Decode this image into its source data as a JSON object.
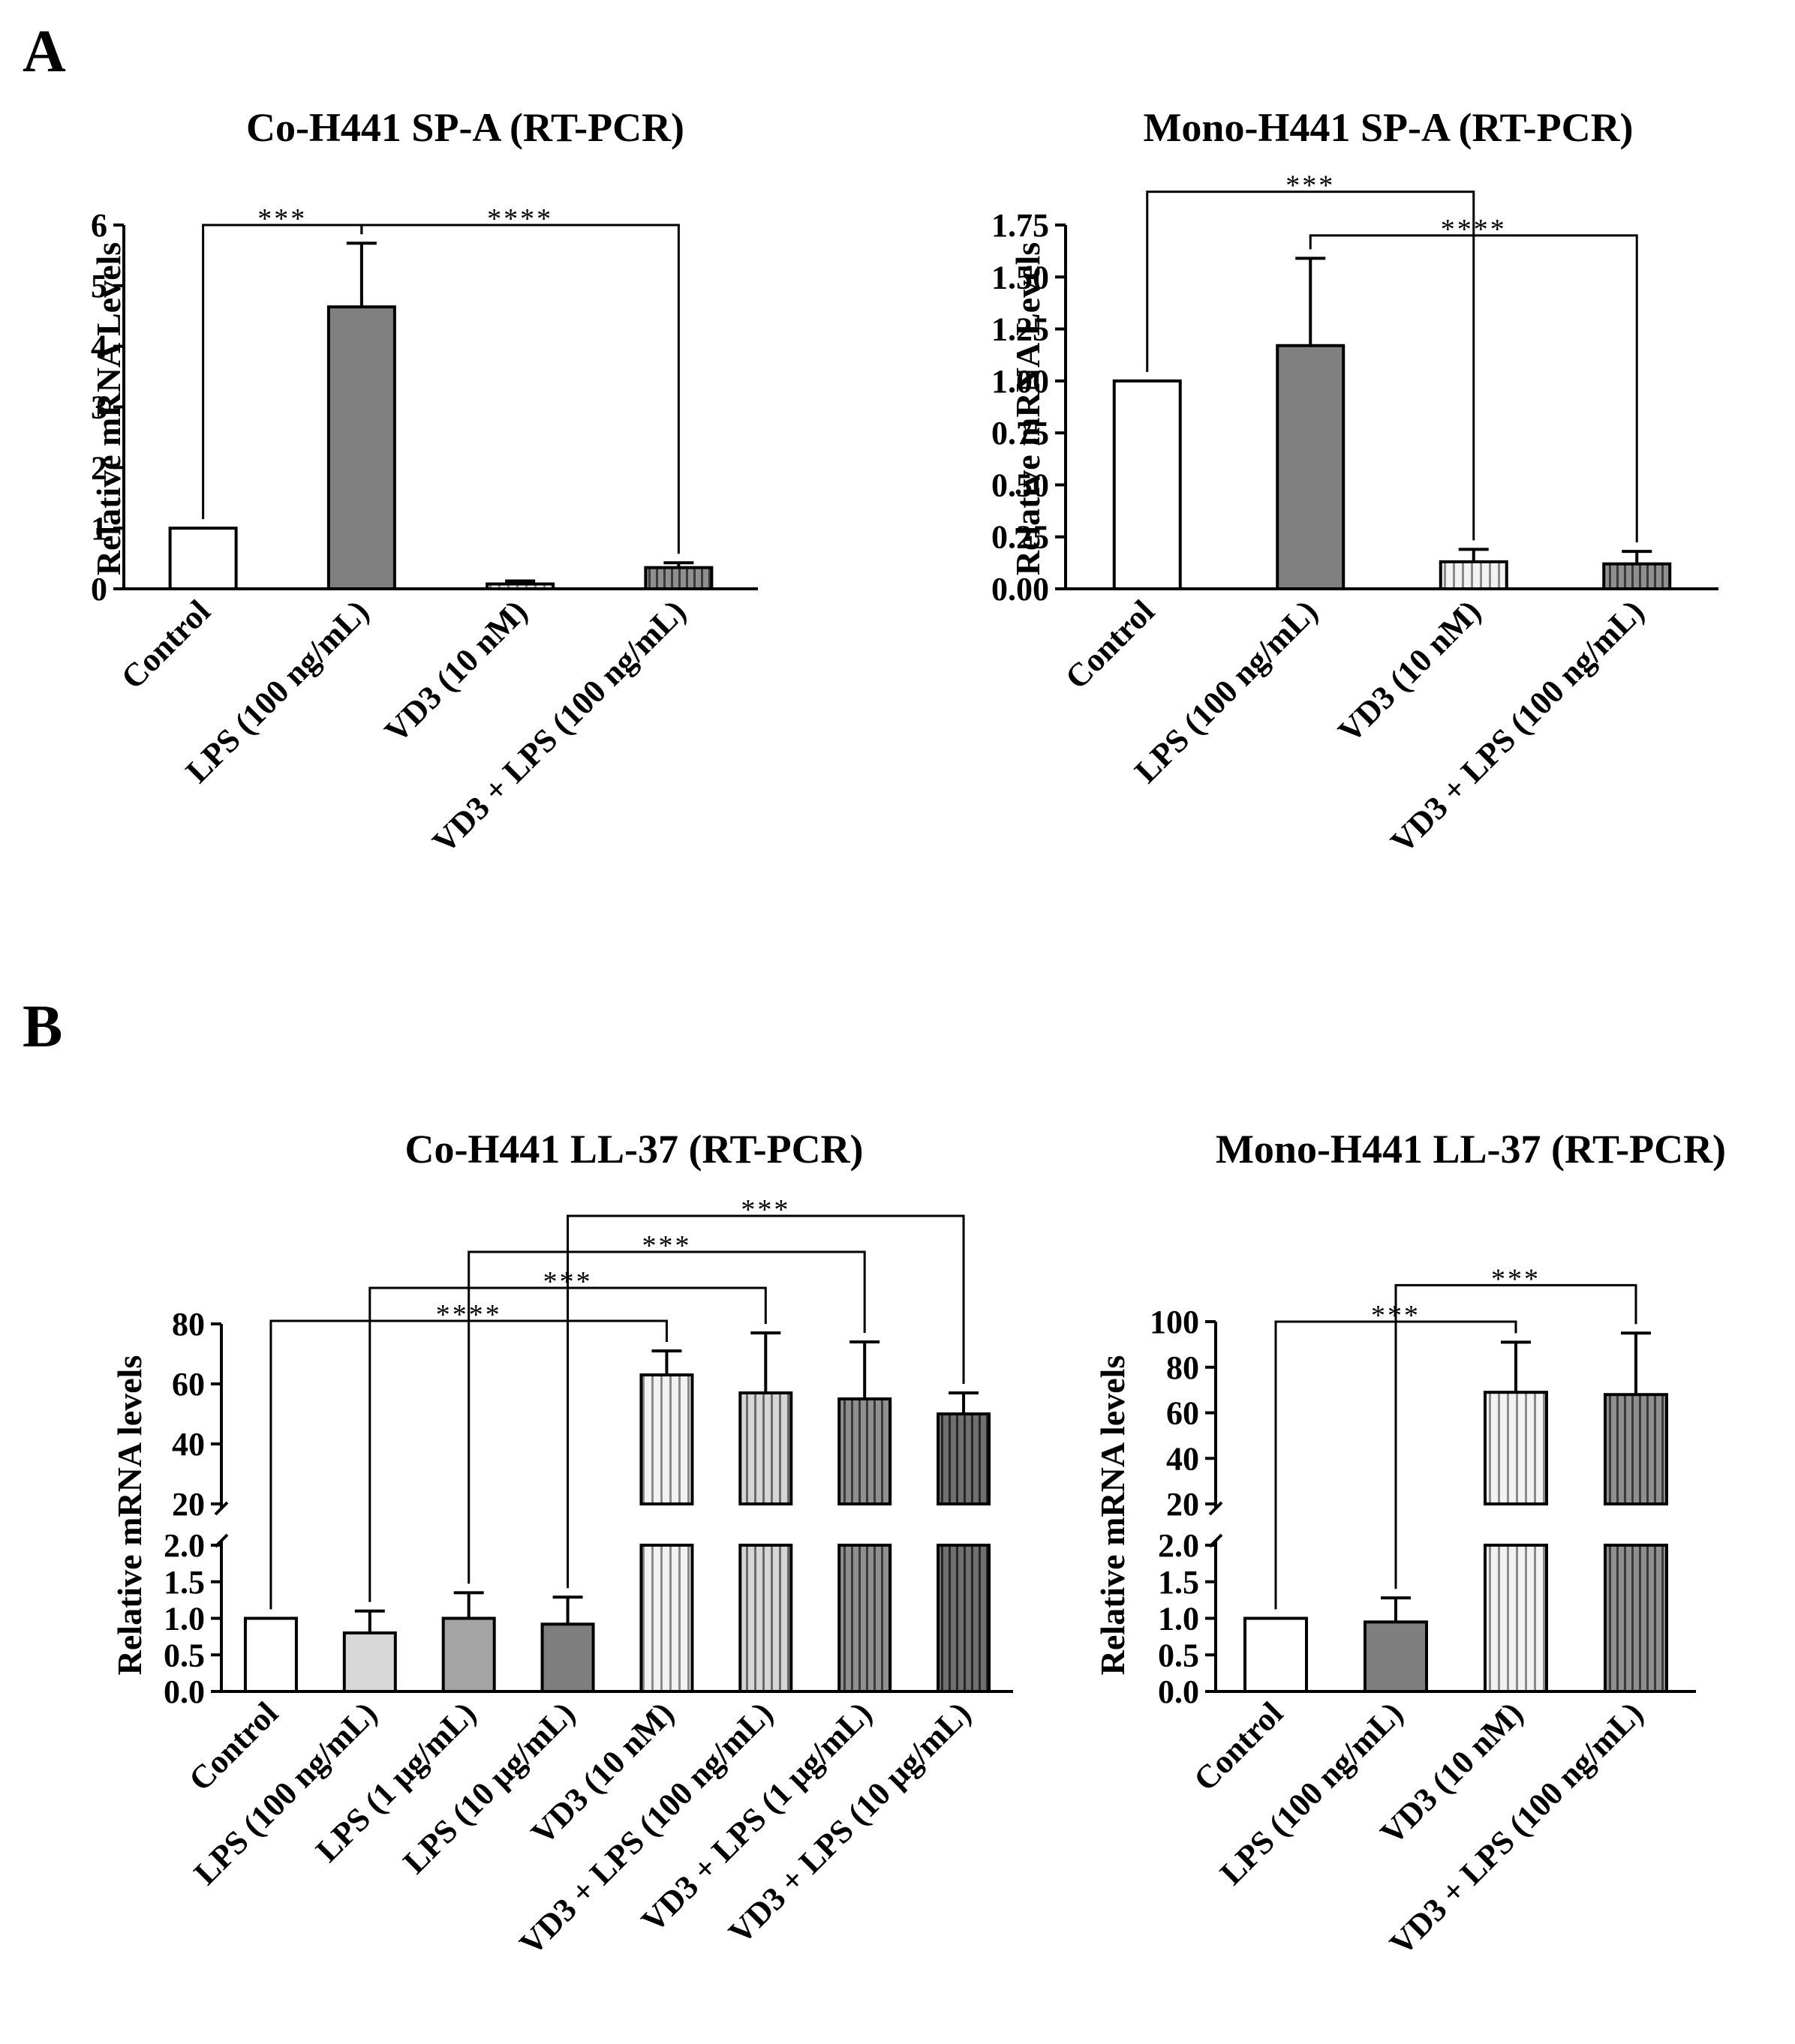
{
  "panels": [
    {
      "letter": "A"
    },
    {
      "letter": "B"
    }
  ],
  "chart_data": [
    {
      "id": "co-h441-spa",
      "panel": "A",
      "type": "bar",
      "title": "Co-H441 SP-A (RT-PCR)",
      "xlabel": "",
      "ylabel": "Relative mRNA Levels",
      "ylim": [
        0,
        6
      ],
      "yticks": [
        "0",
        "1",
        "2",
        "3",
        "4",
        "5",
        "6"
      ],
      "categories": [
        "Control",
        "LPS (100 ng/mL)",
        "VD3 (10 nM)",
        "VD3 + LPS (100 ng/mL)"
      ],
      "values": [
        1.0,
        4.65,
        0.08,
        0.35
      ],
      "errors": [
        0,
        1.05,
        0.05,
        0.08
      ],
      "fills": [
        "#ffffff",
        "#808080",
        "pattern-light",
        "pattern-dark"
      ],
      "significance": [
        {
          "from": 0,
          "to": 1,
          "label": "***",
          "level": 6.0
        },
        {
          "from": 1,
          "to": 3,
          "label": "****",
          "level": 6.0
        }
      ]
    },
    {
      "id": "mono-h441-spa",
      "panel": "A",
      "type": "bar",
      "title": "Mono-H441 SP-A (RT-PCR)",
      "xlabel": "",
      "ylabel": "Relative mRNA Levels",
      "ylim": [
        0,
        1.75
      ],
      "yticks": [
        "0.00",
        "0.25",
        "0.50",
        "0.75",
        "1.00",
        "1.25",
        "1.50",
        "1.75"
      ],
      "categories": [
        "Control",
        "LPS (100 ng/mL)",
        "VD3 (10 nM)",
        "VD3 + LPS (100 ng/mL)"
      ],
      "values": [
        1.0,
        1.17,
        0.13,
        0.12
      ],
      "errors": [
        0,
        0.42,
        0.06,
        0.06
      ],
      "fills": [
        "#ffffff",
        "#808080",
        "pattern-light",
        "pattern-dark"
      ],
      "significance": [
        {
          "from": 0,
          "to": 2,
          "label": "***",
          "level": 1.91
        },
        {
          "from": 1,
          "to": 3,
          "label": "****",
          "level": 1.7
        }
      ]
    },
    {
      "id": "co-h441-ll37",
      "panel": "B",
      "type": "bar",
      "title": "Co-H441 LL-37 (RT-PCR)",
      "xlabel": "",
      "ylabel": "Relative mRNA levels",
      "broken_axis": {
        "lower": [
          0,
          2
        ],
        "upper": [
          20,
          80
        ]
      },
      "yticks_lower": [
        "0.0",
        "0.5",
        "1.0",
        "1.5",
        "2.0"
      ],
      "yticks_upper": [
        "20",
        "40",
        "60",
        "80"
      ],
      "categories": [
        "Control",
        "LPS (100 ng/mL)",
        "LPS (1 µg/mL)",
        "LPS (10 µg/mL)",
        "VD3 (10 nM)",
        "VD3 + LPS (100 ng/mL)",
        "VD3 + LPS (1 µg/mL)",
        "VD3 + LPS (10 µg/mL)"
      ],
      "values": [
        1.0,
        0.8,
        1.0,
        0.92,
        63,
        57,
        55,
        50
      ],
      "errors": [
        0,
        0.3,
        0.35,
        0.37,
        8,
        20,
        19,
        7
      ],
      "fills": [
        "#ffffff",
        "#d8d8d8",
        "#a4a4a4",
        "#7f7f7f",
        "pattern-light",
        "pattern-mid",
        "pattern-dark",
        "pattern-darker"
      ],
      "significance": [
        {
          "from": 0,
          "to": 4,
          "label": "****",
          "level": 81
        },
        {
          "from": 1,
          "to": 5,
          "label": "***",
          "level": 92
        },
        {
          "from": 2,
          "to": 6,
          "label": "***",
          "level": 104
        },
        {
          "from": 3,
          "to": 7,
          "label": "***",
          "level": 116
        }
      ]
    },
    {
      "id": "mono-h441-ll37",
      "panel": "B",
      "type": "bar",
      "title": "Mono-H441 LL-37 (RT-PCR)",
      "xlabel": "",
      "ylabel": "Relative mRNA levels",
      "broken_axis": {
        "lower": [
          0,
          2
        ],
        "upper": [
          20,
          100
        ]
      },
      "yticks_lower": [
        "0.0",
        "0.5",
        "1.0",
        "1.5",
        "2.0"
      ],
      "yticks_upper": [
        "20",
        "40",
        "60",
        "80",
        "100"
      ],
      "categories": [
        "Control",
        "LPS (100 ng/mL)",
        "VD3 (10 nM)",
        "VD3 + LPS (100 ng/mL)"
      ],
      "values": [
        1.0,
        0.95,
        69,
        68
      ],
      "errors": [
        0,
        0.33,
        22,
        27
      ],
      "fills": [
        "#ffffff",
        "#7f7f7f",
        "pattern-light",
        "pattern-dark"
      ],
      "significance": [
        {
          "from": 0,
          "to": 2,
          "label": "***",
          "level": 100
        },
        {
          "from": 1,
          "to": 3,
          "label": "***",
          "level": 116
        }
      ]
    }
  ]
}
